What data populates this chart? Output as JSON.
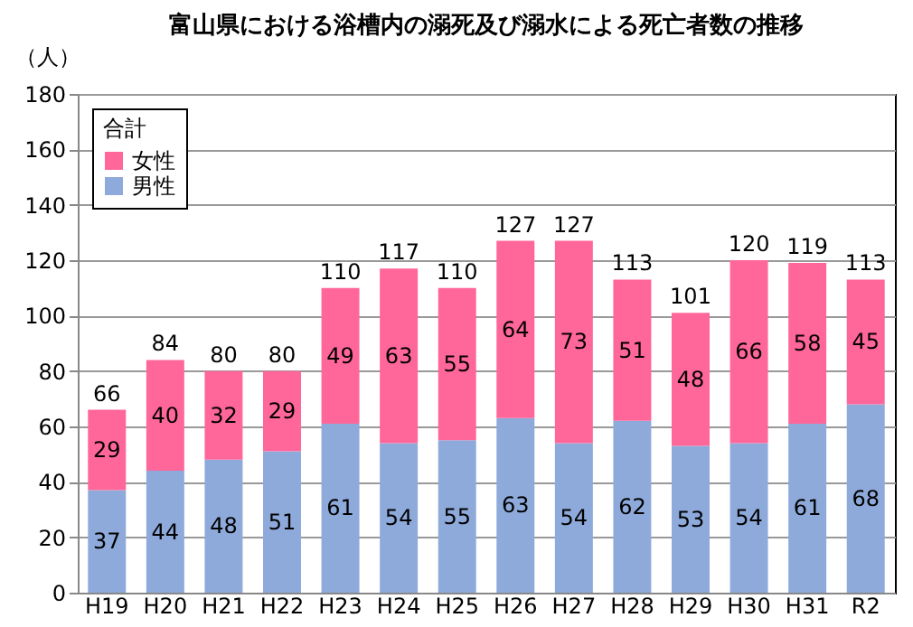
{
  "chart_data": {
    "type": "bar",
    "title": "富山県における浴槽内の溺死及び溺水による死亡者数の推移",
    "ylabel": "（人）",
    "legend_title": "合計",
    "categories": [
      "H19",
      "H20",
      "H21",
      "H22",
      "H23",
      "H24",
      "H25",
      "H26",
      "H27",
      "H28",
      "H29",
      "H30",
      "H31",
      "R2"
    ],
    "series": [
      {
        "name": "男性",
        "color": "#8eaadb",
        "values": [
          37,
          44,
          48,
          51,
          61,
          54,
          55,
          63,
          54,
          62,
          53,
          54,
          61,
          68
        ]
      },
      {
        "name": "女性",
        "color": "#ff6699",
        "values": [
          29,
          40,
          32,
          29,
          49,
          63,
          55,
          64,
          73,
          51,
          48,
          66,
          58,
          45
        ]
      }
    ],
    "stacked": true,
    "data_labels": true,
    "totals": [
      "66",
      "84",
      "80",
      "80",
      "110",
      "117",
      "110",
      "127",
      "127",
      "113",
      "101",
      "120",
      "119",
      "113"
    ],
    "ylim": [
      0,
      180
    ],
    "yticks": [
      0,
      20,
      40,
      60,
      80,
      100,
      120,
      140,
      160,
      180
    ],
    "grid": "y",
    "legend": "top left"
  }
}
